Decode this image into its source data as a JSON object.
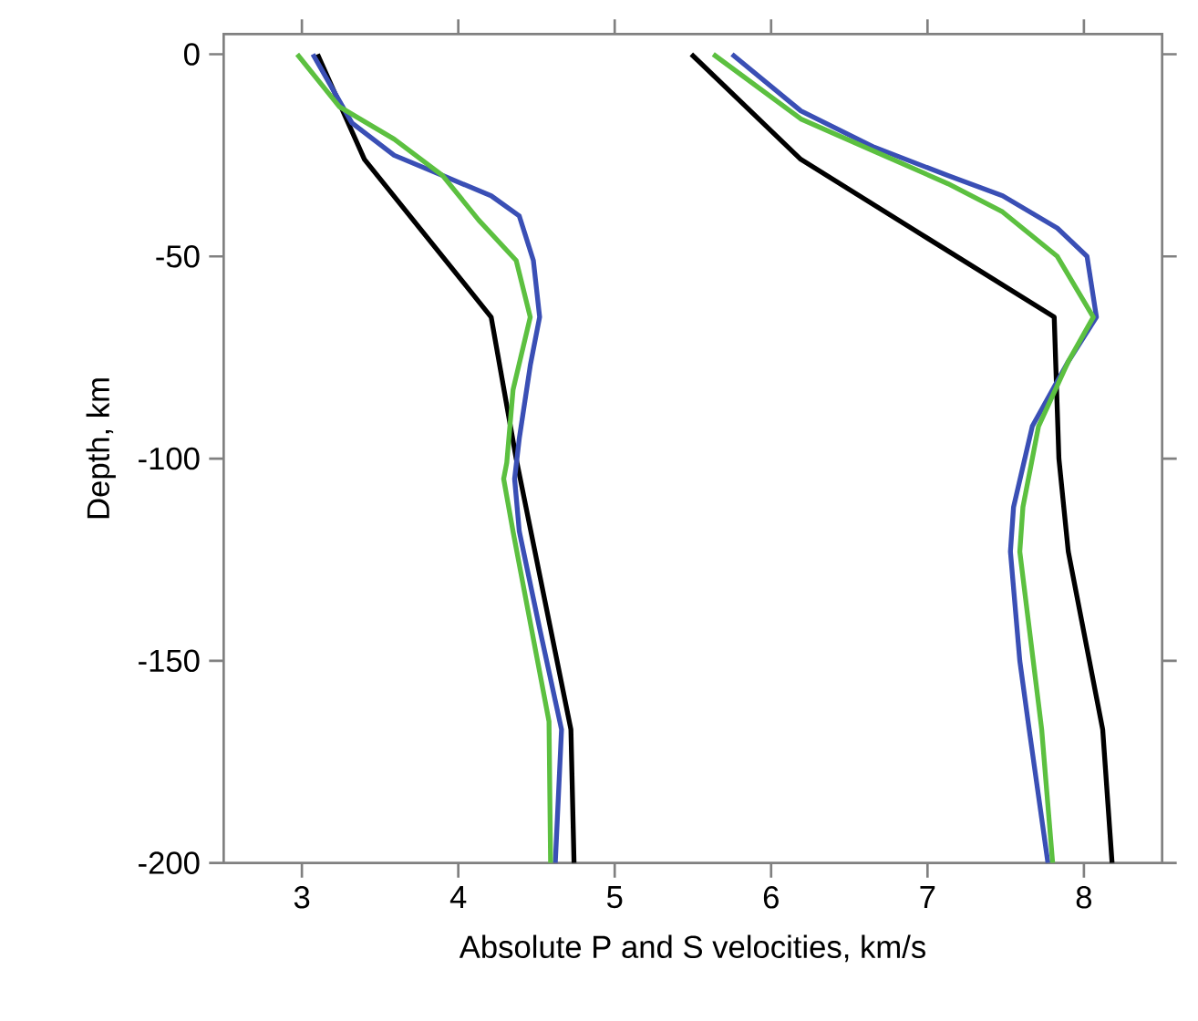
{
  "chart_data": {
    "type": "line",
    "xlabel": "Absolute P and S velocities, km/s",
    "ylabel": "Depth, km",
    "xlim": [
      2.5,
      8.5
    ],
    "ylim": [
      -200,
      5
    ],
    "xticks": [
      3,
      4,
      5,
      6,
      7,
      8
    ],
    "yticks": [
      0,
      -50,
      -100,
      -150,
      -200
    ],
    "marker": "none",
    "line_style": "solid",
    "series": [
      {
        "color": "#000000",
        "x": [
          3.1,
          3.4,
          4.21,
          4.37,
          4.72,
          4.74
        ],
        "values": [
          0,
          -26,
          -65,
          -100,
          -167,
          -200
        ]
      },
      {
        "color": "#3a4fb5",
        "x": [
          3.07,
          3.32,
          3.59,
          3.9,
          4.21,
          4.39,
          4.48,
          4.52,
          4.46,
          4.39,
          4.36,
          4.39,
          4.52,
          4.66,
          4.62
        ],
        "values": [
          0,
          -17,
          -25,
          -30,
          -35,
          -40,
          -51,
          -65,
          -77,
          -95,
          -105,
          -118,
          -142,
          -167,
          -200
        ]
      },
      {
        "color": "#5cc040",
        "x": [
          2.97,
          3.24,
          3.59,
          3.9,
          4.13,
          4.37,
          4.46,
          4.35,
          4.31,
          4.29,
          4.35,
          4.58,
          4.59
        ],
        "values": [
          0,
          -13,
          -21,
          -30,
          -41,
          -51,
          -65,
          -83,
          -101,
          -105,
          -118,
          -165,
          -200
        ]
      },
      {
        "color": "#000000",
        "x": [
          5.49,
          6.19,
          7.81,
          7.84,
          7.9,
          8.12,
          8.18
        ],
        "values": [
          0,
          -26,
          -65,
          -100,
          -123,
          -167,
          -200
        ]
      },
      {
        "color": "#3a4fb5",
        "x": [
          5.75,
          6.19,
          6.66,
          7.13,
          7.48,
          7.83,
          8.02,
          8.08,
          7.9,
          7.67,
          7.55,
          7.53,
          7.59,
          7.65,
          7.77
        ],
        "values": [
          0,
          -14,
          -23,
          -30,
          -35,
          -43,
          -50,
          -65,
          -76,
          -92,
          -112,
          -123,
          -150,
          -167,
          -200
        ]
      },
      {
        "color": "#5cc040",
        "x": [
          5.63,
          6.19,
          6.66,
          7.13,
          7.48,
          7.83,
          8.06,
          7.9,
          7.71,
          7.61,
          7.59,
          7.73,
          7.8
        ],
        "values": [
          0,
          -16,
          -24,
          -32,
          -39,
          -50,
          -65,
          -76,
          -92,
          -112,
          -123,
          -167,
          -200
        ]
      }
    ]
  }
}
